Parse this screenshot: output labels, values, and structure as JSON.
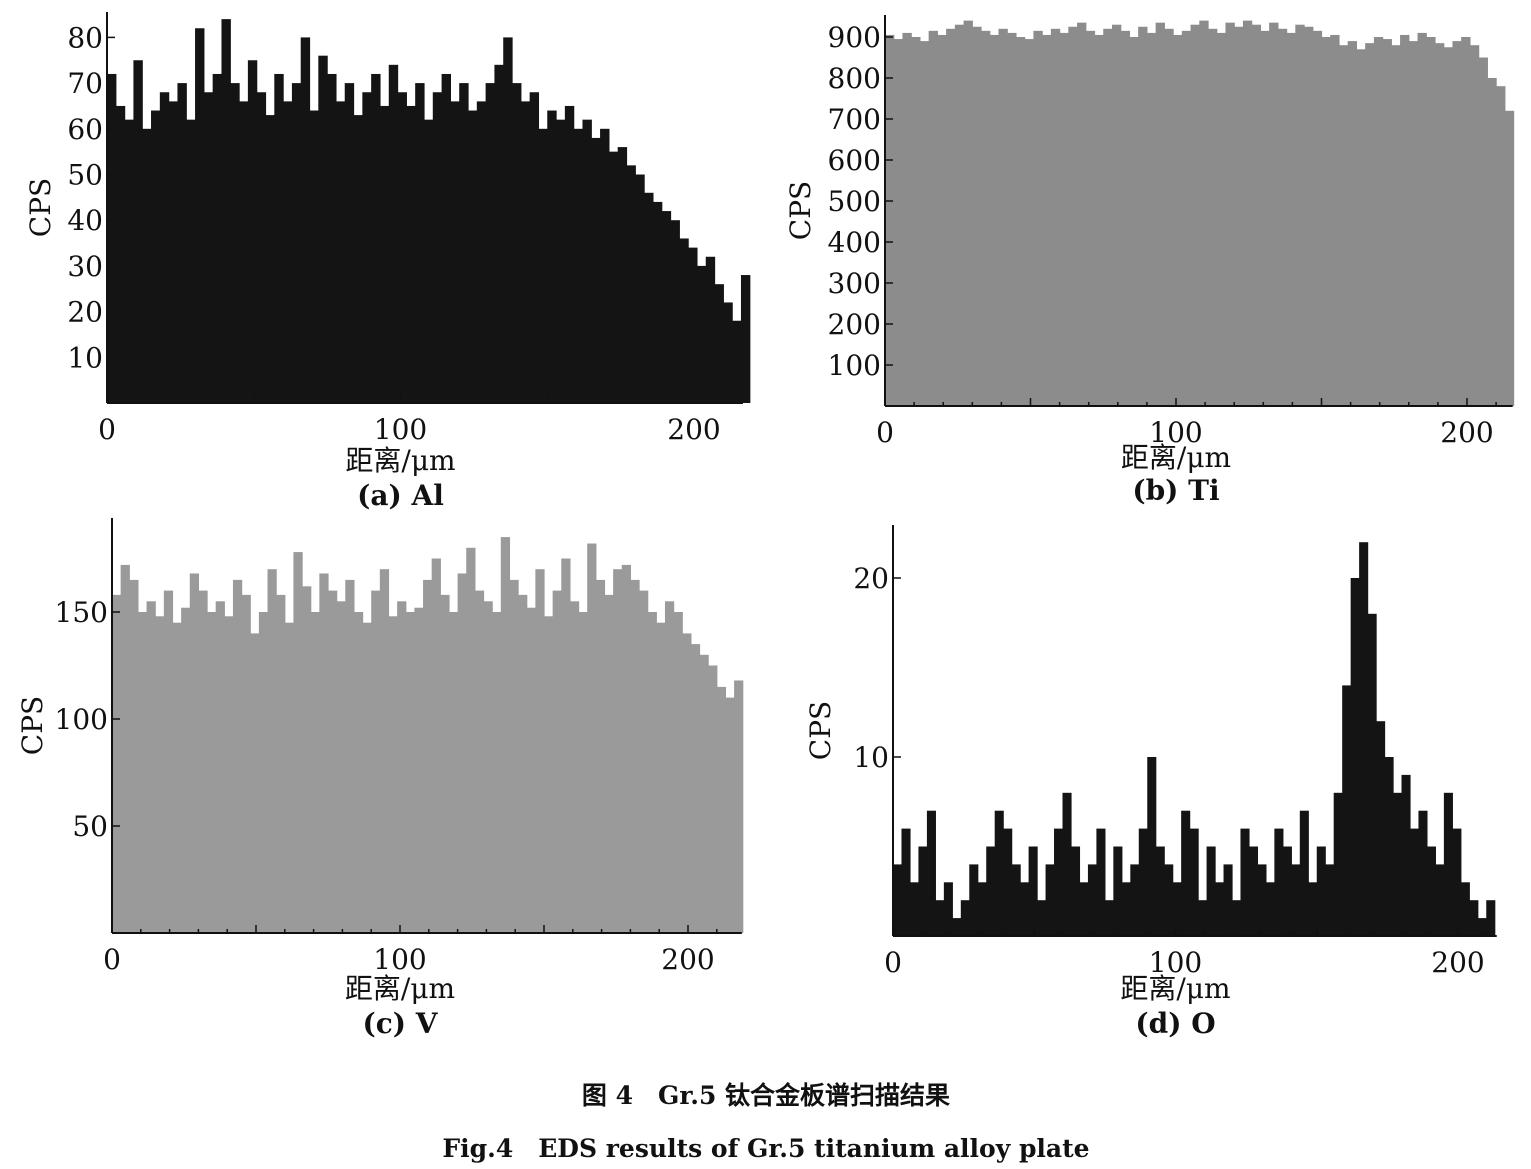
{
  "figure_caption_cn": "图 4　Gr.5 钛合金板谱扫描结果",
  "figure_caption_en": "Fig.4　EDS results of Gr.5 titanium alloy plate",
  "chart_data": [
    {
      "type": "bar",
      "caption": "(a) Al",
      "xlabel": "距离/μm",
      "ylabel": "CPS",
      "xlim": [
        0,
        216
      ],
      "ylim": [
        0,
        85
      ],
      "xticks": [
        0,
        100,
        200
      ],
      "yticks": [
        10,
        20,
        30,
        40,
        50,
        60,
        70,
        80
      ],
      "color": "#141414",
      "x_step": 3,
      "values": [
        72,
        65,
        62,
        75,
        60,
        64,
        68,
        66,
        70,
        62,
        82,
        68,
        72,
        84,
        70,
        66,
        75,
        68,
        63,
        72,
        66,
        70,
        80,
        64,
        76,
        72,
        66,
        70,
        63,
        68,
        72,
        65,
        74,
        68,
        65,
        70,
        62,
        68,
        72,
        66,
        70,
        64,
        66,
        70,
        74,
        80,
        70,
        66,
        68,
        60,
        64,
        62,
        65,
        60,
        62,
        58,
        60,
        55,
        56,
        52,
        50,
        46,
        44,
        42,
        40,
        36,
        34,
        30,
        32,
        26,
        22,
        18,
        28
      ]
    },
    {
      "type": "bar",
      "caption": "(b) Ti",
      "xlabel": "距离/μm",
      "ylabel": "CPS",
      "xlim": [
        0,
        215
      ],
      "ylim": [
        0,
        950
      ],
      "xticks": [
        0,
        100,
        200
      ],
      "yticks": [
        100,
        200,
        300,
        400,
        500,
        600,
        700,
        800,
        900
      ],
      "color": "#8c8c8c",
      "x_step": 3,
      "values": [
        905,
        895,
        910,
        900,
        890,
        915,
        905,
        920,
        930,
        940,
        925,
        915,
        905,
        920,
        910,
        900,
        895,
        915,
        905,
        920,
        910,
        925,
        935,
        915,
        905,
        920,
        930,
        915,
        900,
        925,
        910,
        935,
        920,
        905,
        915,
        930,
        940,
        920,
        910,
        935,
        925,
        940,
        930,
        915,
        935,
        920,
        910,
        930,
        925,
        915,
        900,
        905,
        880,
        890,
        870,
        885,
        900,
        895,
        880,
        905,
        890,
        910,
        900,
        885,
        875,
        890,
        900,
        880,
        850,
        800,
        780,
        720
      ]
    },
    {
      "type": "bar",
      "caption": "(c) V",
      "xlabel": "距离/μm",
      "ylabel": "CPS",
      "xlim": [
        0,
        218
      ],
      "ylim": [
        0,
        192
      ],
      "xticks": [
        0,
        100,
        200
      ],
      "yticks": [
        50,
        100,
        150
      ],
      "color": "#9a9a9a",
      "x_step": 3,
      "values": [
        158,
        172,
        165,
        150,
        155,
        148,
        160,
        145,
        152,
        168,
        160,
        150,
        155,
        148,
        165,
        158,
        140,
        150,
        170,
        158,
        145,
        178,
        162,
        150,
        168,
        160,
        155,
        165,
        150,
        145,
        160,
        170,
        148,
        155,
        150,
        152,
        165,
        175,
        158,
        150,
        168,
        180,
        160,
        155,
        150,
        185,
        165,
        158,
        152,
        170,
        148,
        160,
        175,
        155,
        150,
        182,
        165,
        158,
        170,
        172,
        165,
        160,
        150,
        145,
        155,
        150,
        140,
        135,
        130,
        125,
        115,
        110,
        118
      ]
    },
    {
      "type": "bar",
      "caption": "(d) O",
      "xlabel": "距离/μm",
      "ylabel": "CPS",
      "xlim": [
        0,
        213
      ],
      "ylim": [
        0,
        23
      ],
      "xticks": [
        0,
        100,
        200
      ],
      "yticks": [
        10,
        20
      ],
      "color": "#141414",
      "x_step": 3,
      "values": [
        4,
        6,
        3,
        5,
        7,
        2,
        3,
        1,
        2,
        4,
        3,
        5,
        7,
        6,
        4,
        3,
        5,
        2,
        4,
        6,
        8,
        5,
        3,
        4,
        6,
        2,
        5,
        3,
        4,
        6,
        10,
        5,
        4,
        3,
        7,
        6,
        2,
        5,
        3,
        4,
        2,
        6,
        5,
        4,
        3,
        6,
        5,
        4,
        7,
        3,
        5,
        4,
        8,
        14,
        20,
        22,
        18,
        12,
        10,
        8,
        9,
        6,
        7,
        5,
        4,
        8,
        6,
        3,
        2,
        1,
        2
      ]
    }
  ]
}
